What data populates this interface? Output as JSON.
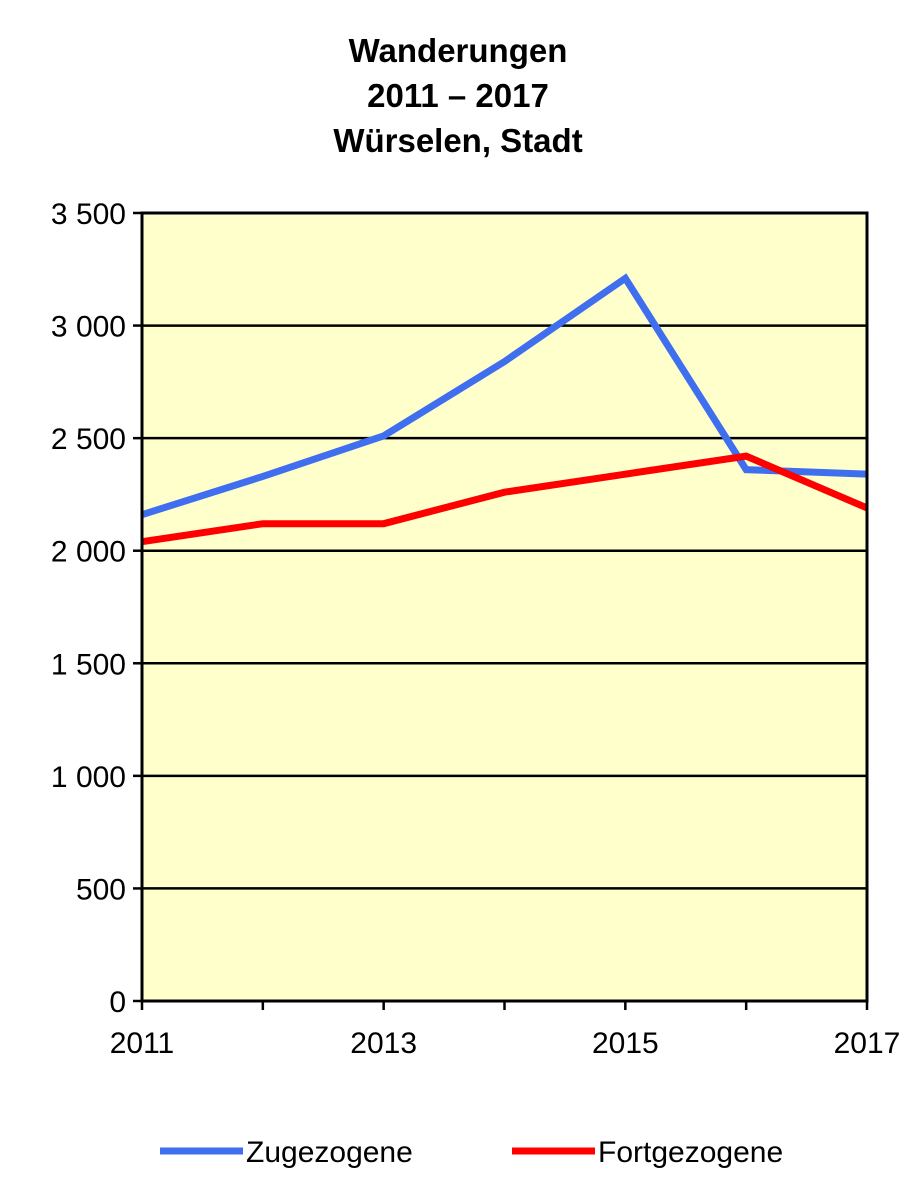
{
  "chart_data": {
    "type": "line",
    "title_lines": [
      "Wanderungen",
      "2011 – 2017",
      "Würselen, Stadt"
    ],
    "x": [
      2011,
      2012,
      2013,
      2014,
      2015,
      2016,
      2017
    ],
    "x_tick_labels": [
      "2011",
      "2013",
      "2015",
      "2017"
    ],
    "y_tick_labels": [
      "0",
      "500",
      "1 000",
      "1 500",
      "2 000",
      "2 500",
      "3 000",
      "3 500"
    ],
    "ylim": [
      0,
      3500
    ],
    "grid": true,
    "plot_background": "#FFFFCC",
    "legend_position": "bottom",
    "series": [
      {
        "name": "Zugezogene",
        "color": "#3F6FEF",
        "values": [
          2160,
          2330,
          2510,
          2840,
          3210,
          2360,
          2340
        ]
      },
      {
        "name": "Fortgezogene",
        "color": "#FF0000",
        "values": [
          2040,
          2120,
          2120,
          2260,
          2340,
          2420,
          2190
        ]
      }
    ]
  }
}
